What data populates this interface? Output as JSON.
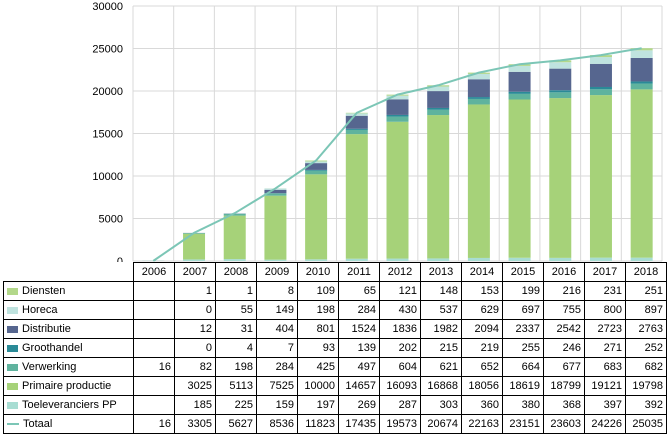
{
  "chart_data": {
    "type": "bar",
    "stacked": true,
    "categories": [
      "2006",
      "2007",
      "2008",
      "2009",
      "2010",
      "2011",
      "2012",
      "2013",
      "2014",
      "2015",
      "2016",
      "2017",
      "2018"
    ],
    "ylim": [
      0,
      30000
    ],
    "yticks": [
      "0",
      "5000",
      "10000",
      "15000",
      "20000",
      "25000",
      "30000"
    ],
    "grid": true,
    "legend_placement": "data-table",
    "series": [
      {
        "name": "Diensten",
        "color": "#b3d88a",
        "values": [
          null,
          1,
          1,
          8,
          109,
          65,
          121,
          148,
          153,
          199,
          216,
          231,
          251
        ],
        "labels": [
          "",
          "1",
          "1",
          "8",
          "109",
          "65",
          "121",
          "148",
          "153",
          "199",
          "216",
          "231",
          "251"
        ]
      },
      {
        "name": "Horeca",
        "color": "#bfe3df",
        "values": [
          null,
          0,
          55,
          149,
          198,
          284,
          430,
          537,
          629,
          697,
          755,
          800,
          897
        ],
        "labels": [
          "",
          "0",
          "55",
          "149",
          "198",
          "284",
          "430",
          "537",
          "629",
          "697",
          "755",
          "800",
          "897"
        ]
      },
      {
        "name": "Distributie",
        "color": "#56668f",
        "values": [
          null,
          12,
          31,
          404,
          801,
          1524,
          1836,
          1982,
          2094,
          2337,
          2542,
          2723,
          2763
        ],
        "labels": [
          "",
          "12",
          "31",
          "404",
          "801",
          "1524",
          "1836",
          "1982",
          "2094",
          "2337",
          "2542",
          "2723",
          "2763"
        ]
      },
      {
        "name": "Groothandel",
        "color": "#2a8a97",
        "values": [
          null,
          0,
          4,
          7,
          93,
          139,
          202,
          215,
          219,
          255,
          246,
          271,
          252
        ],
        "labels": [
          "",
          "0",
          "4",
          "7",
          "93",
          "139",
          "202",
          "215",
          "219",
          "255",
          "246",
          "271",
          "252"
        ]
      },
      {
        "name": "Verwerking",
        "color": "#5fb39e",
        "values": [
          16,
          82,
          198,
          284,
          425,
          497,
          604,
          621,
          652,
          664,
          677,
          683,
          682
        ],
        "labels": [
          "16",
          "82",
          "198",
          "284",
          "425",
          "497",
          "604",
          "621",
          "652",
          "664",
          "677",
          "683",
          "682"
        ]
      },
      {
        "name": "Primaire productie",
        "color": "#a6d279",
        "values": [
          null,
          3025,
          5113,
          7525,
          10000,
          14657,
          16093,
          16868,
          18056,
          18619,
          18799,
          19121,
          19798
        ],
        "labels": [
          "",
          "3025",
          "5113",
          "7525",
          "10000",
          "14657",
          "16093",
          "16868",
          "18056",
          "18619",
          "18799",
          "19121",
          "19798"
        ]
      },
      {
        "name": "Toeleveranciers PP",
        "color": "#a8ddd3",
        "values": [
          null,
          185,
          225,
          159,
          197,
          269,
          287,
          303,
          360,
          380,
          368,
          397,
          392
        ],
        "labels": [
          "",
          "185",
          "225",
          "159",
          "197",
          "269",
          "287",
          "303",
          "360",
          "380",
          "368",
          "397",
          "392"
        ]
      }
    ],
    "line_series": {
      "name": "Totaal",
      "color": "#7cc6b6",
      "values": [
        16,
        3305,
        5627,
        8536,
        11823,
        17435,
        19573,
        20674,
        22163,
        23151,
        23603,
        24226,
        25035
      ],
      "labels": [
        "16",
        "3305",
        "5627",
        "8536",
        "11823",
        "17435",
        "19573",
        "20674",
        "22163",
        "23151",
        "23603",
        "24226",
        "25035"
      ]
    }
  }
}
